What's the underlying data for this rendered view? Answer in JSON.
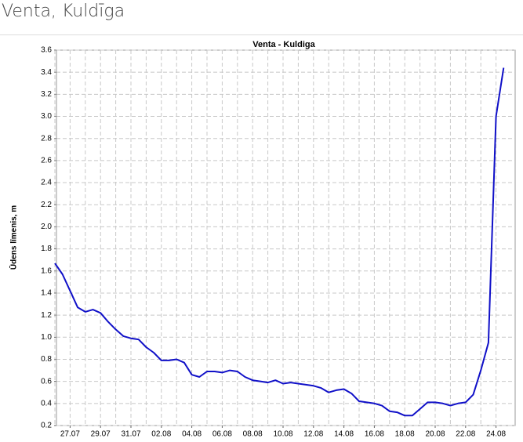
{
  "header": {
    "title": "Venta, Kuldīga"
  },
  "chart_data": {
    "type": "line",
    "title": "Venta - Kuldiga",
    "y_label": "Ūdens līmenis, m",
    "categories": [
      null,
      null,
      "27.07",
      null,
      null,
      null,
      "29.07",
      null,
      null,
      null,
      "31.07",
      null,
      null,
      null,
      "02.08",
      null,
      null,
      null,
      "04.08",
      null,
      null,
      null,
      "06.08",
      null,
      null,
      null,
      "08.08",
      null,
      null,
      null,
      "10.08",
      null,
      null,
      null,
      "12.08",
      null,
      null,
      null,
      "14.08",
      null,
      null,
      null,
      "16.08",
      null,
      null,
      null,
      "18.08",
      null,
      null,
      null,
      "20.08",
      null,
      null,
      null,
      "22.08",
      null,
      null,
      null,
      "24.08",
      null
    ],
    "values": [
      1.67,
      1.57,
      1.42,
      1.27,
      1.23,
      1.25,
      1.22,
      1.14,
      1.07,
      1.01,
      0.99,
      0.98,
      0.91,
      0.86,
      0.79,
      0.79,
      0.8,
      0.77,
      0.66,
      0.64,
      0.69,
      0.69,
      0.68,
      0.7,
      0.69,
      0.64,
      0.61,
      0.6,
      0.59,
      0.61,
      0.58,
      0.59,
      0.58,
      0.57,
      0.56,
      0.54,
      0.5,
      0.52,
      0.53,
      0.49,
      0.42,
      0.41,
      0.4,
      0.38,
      0.33,
      0.32,
      0.29,
      0.29,
      0.35,
      0.41,
      0.41,
      0.4,
      0.38,
      0.4,
      0.41,
      0.48,
      0.7,
      0.95,
      3.0,
      3.44
    ],
    "color": "#1010c8",
    "ylim": [
      0.2,
      3.6
    ],
    "yticks": [
      0.2,
      0.4,
      0.6,
      0.8,
      {
        "value": 1,
        "label": "1.0"
      },
      1.2,
      1.4,
      1.6,
      1.8,
      {
        "value": 2,
        "label": "2.0"
      },
      2.2,
      2.4,
      2.6,
      2.8,
      {
        "value": 3,
        "label": "3.0"
      },
      3.2,
      3.4,
      3.6
    ],
    "grid": true
  }
}
